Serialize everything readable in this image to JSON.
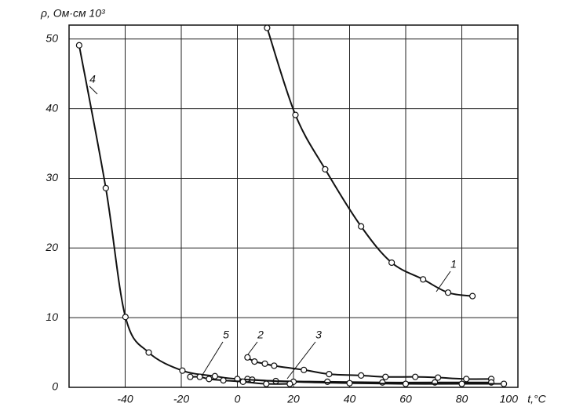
{
  "chart_data": {
    "type": "line",
    "y_label": "ρ, Ом·см 10³",
    "x_label": "t,°C",
    "xlim": [
      -60,
      100
    ],
    "ylim": [
      0,
      52
    ],
    "xticks": [
      -40,
      -20,
      0,
      20,
      40,
      60,
      80,
      100
    ],
    "yticks": [
      0,
      10,
      20,
      30,
      40,
      50
    ],
    "grid": true,
    "series": [
      {
        "name": "1",
        "color": "#111111",
        "x": [
          10.6,
          20.7,
          31.3,
          44.1,
          55,
          66.2,
          75.1,
          83.8
        ],
        "values": [
          51.6,
          39.1,
          31.3,
          23.1,
          17.9,
          15.5,
          13.6,
          13.1
        ]
      },
      {
        "name": "2",
        "color": "#111111",
        "x": [
          3.6,
          6.1,
          9.8,
          13.1,
          23.7,
          32.7,
          44.1,
          52.8,
          63.4,
          71.5,
          81.6,
          90.5
        ],
        "values": [
          4.3,
          3.7,
          3.4,
          3.1,
          2.5,
          1.9,
          1.7,
          1.5,
          1.5,
          1.4,
          1.2,
          1.2
        ]
      },
      {
        "name": "3",
        "color": "#111111",
        "x": [
          3.6,
          5.3,
          13.7,
          32.1,
          51.7,
          70.4,
          90.5
        ],
        "values": [
          1.2,
          1.1,
          0.9,
          0.8,
          0.7,
          0.7,
          0.7
        ]
      },
      {
        "name": "4",
        "color": "#111111",
        "x": [
          -56.4,
          -46.9,
          -39.9,
          -31.6,
          -19.6,
          -8,
          0,
          20,
          40,
          60,
          80,
          95
        ],
        "values": [
          49.1,
          28.6,
          10.1,
          5.0,
          2.4,
          1.6,
          1.2,
          0.8,
          0.6,
          0.5,
          0.5,
          0.5
        ]
      },
      {
        "name": "5",
        "color": "#111111",
        "x": [
          -16.8,
          -13.4,
          -10.1,
          -5,
          2,
          10.3,
          18.7
        ],
        "values": [
          1.5,
          1.5,
          1.2,
          1.0,
          0.8,
          0.5,
          0.5
        ]
      }
    ]
  }
}
